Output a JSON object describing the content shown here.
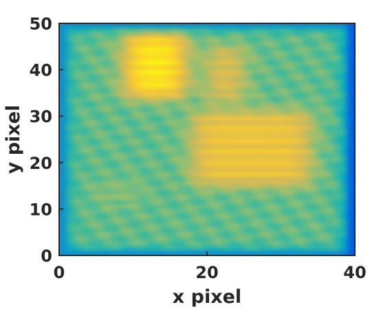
{
  "chart_data": {
    "type": "heatmap",
    "xlabel": "x pixel",
    "ylabel": "y pixel",
    "xlim": [
      0,
      40
    ],
    "ylim": [
      0,
      50
    ],
    "xticks": [
      0,
      20,
      40
    ],
    "yticks": [
      0,
      10,
      20,
      30,
      40,
      50
    ],
    "colormap": "parula",
    "colorbar": false,
    "grid": false,
    "grid_resolution": {
      "nx": 40,
      "ny": 50
    },
    "normalized_range": [
      0,
      1
    ],
    "background_level": 0.56,
    "features": [
      {
        "kind": "edge_low",
        "sides": [
          "left",
          "bottom",
          "top"
        ],
        "level": 0.3
      },
      {
        "kind": "edge_low",
        "sides": [
          "right"
        ],
        "level": 0.12
      },
      {
        "kind": "hot_region",
        "x": [
          9,
          17
        ],
        "y": [
          34,
          48
        ],
        "peak": 0.95
      },
      {
        "kind": "warm_region",
        "x": [
          20,
          25
        ],
        "y": [
          33,
          45
        ],
        "peak": 0.78
      },
      {
        "kind": "warm_region",
        "x": [
          18,
          34
        ],
        "y": [
          15,
          31
        ],
        "peak": 0.82
      },
      {
        "kind": "warm_spot",
        "x": [
          5,
          11
        ],
        "y": [
          11,
          16
        ],
        "peak": 0.62
      }
    ]
  },
  "colors": {
    "parula_stops": [
      "#352a87",
      "#0363e1",
      "#1485d4",
      "#06a7c6",
      "#38b99e",
      "#92bf73",
      "#d9ba56",
      "#fcce2e",
      "#f9fb0e"
    ],
    "axis": "#262626",
    "text": "#262626"
  }
}
